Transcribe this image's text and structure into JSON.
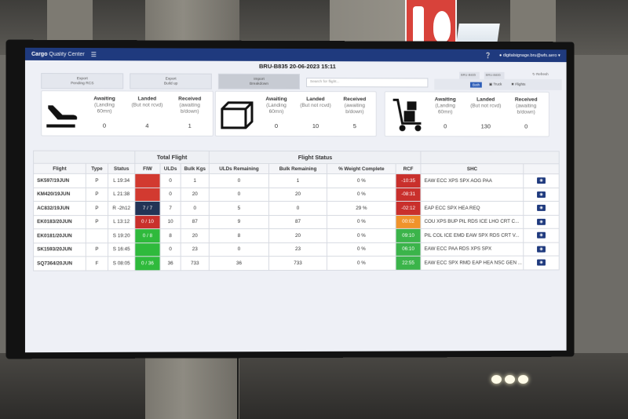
{
  "app": {
    "brand_bold": "Cargo",
    "brand_rest": " Quality Center",
    "user_email": "digitalsignage.bru@wfs.aero",
    "page_title": "BRU-B835 20-06-2023 15:11"
  },
  "controls": {
    "export_pending_line1": "Export",
    "export_pending_line2": "Pending RCS",
    "export_buildup_line1": "Export",
    "export_buildup_line2": "Build up",
    "import_breakdown_line1": "Import",
    "import_breakdown_line2": "Breakdown",
    "search_placeholder": "Search for flight...",
    "select_a": "BRU-B835",
    "select_b": "BRU-B835",
    "refresh_label": "Refresh",
    "filter_both": "Both",
    "filter_truck": "Truck",
    "filter_flights": "Flights"
  },
  "summary": {
    "flight": {
      "icon": "plane-landing-icon",
      "awaiting_label": "Awaiting",
      "awaiting_sub": "(Landing 60mn)",
      "awaiting_value": "0",
      "landed_label": "Landed",
      "landed_sub": "(But not rcvd)",
      "landed_value": "4",
      "received_label": "Received",
      "received_sub": "(awaiting b/down)",
      "received_value": "1"
    },
    "uld": {
      "icon": "uld-container-icon",
      "awaiting_label": "Awaiting",
      "awaiting_sub": "(Landing 60mn)",
      "awaiting_value": "0",
      "landed_label": "Landed",
      "landed_sub": "(But not rcvd)",
      "landed_value": "10",
      "received_label": "Received",
      "received_sub": "(awaiting b/down)",
      "received_value": "5"
    },
    "bulk": {
      "icon": "hand-truck-icon",
      "awaiting_label": "Awaiting",
      "awaiting_sub": "(Landing 60mn)",
      "awaiting_value": "0",
      "landed_label": "Landed",
      "landed_sub": "(But not rcvd)",
      "landed_value": "130",
      "received_label": "Received",
      "received_sub": "(awaiting b/down)",
      "received_value": "0"
    }
  },
  "table": {
    "group_total": "Total Flight",
    "group_status": "Flight Status",
    "headers": {
      "flight": "Flight",
      "type": "Type",
      "status": "Status",
      "fiw": "FIW",
      "ulds": "ULDs",
      "bulk_kgs": "Bulk Kgs",
      "ulds_remaining": "ULDs Remaining",
      "bulk_remaining": "Bulk Remaining",
      "pct_weight": "% Weight Complete",
      "rcf": "RCF",
      "shc": "SHC"
    },
    "rows": [
      {
        "flight": "SK597/19JUN",
        "type": "P",
        "status": "L 19:34",
        "fiw": "",
        "fiw_color": "#d23a30",
        "ulds": "0",
        "bulk": "1",
        "ulds_rem": "0",
        "bulk_rem": "1",
        "pct": "0 %",
        "rcf": "-10:35",
        "rcf_color": "#c9302c",
        "shc": "EAW ECC XPS SPX AOG PAA"
      },
      {
        "flight": "KM420/19JUN",
        "type": "P",
        "status": "L 21:38",
        "fiw": "",
        "fiw_color": "#d23a30",
        "ulds": "0",
        "bulk": "20",
        "ulds_rem": "0",
        "bulk_rem": "20",
        "pct": "0 %",
        "rcf": "-08:31",
        "rcf_color": "#c9302c",
        "shc": ""
      },
      {
        "flight": "AC832/19JUN",
        "type": "P",
        "status": "R -2h12",
        "fiw": "7 / 7",
        "fiw_color": "#233456",
        "ulds": "7",
        "bulk": "0",
        "ulds_rem": "5",
        "bulk_rem": "0",
        "pct": "29 %",
        "rcf": "-02:12",
        "rcf_color": "#c9302c",
        "shc": "EAP ECC SPX HEA REQ"
      },
      {
        "flight": "EK0183/20JUN",
        "type": "P",
        "status": "L 13:12",
        "fiw": "0 / 10",
        "fiw_color": "#c9302c",
        "ulds": "10",
        "bulk": "87",
        "ulds_rem": "9",
        "bulk_rem": "87",
        "pct": "0 %",
        "rcf": "00:02",
        "rcf_color": "#f0932b",
        "shc": "COU XPS BUP PIL RDS ICE LHO CRT C..."
      },
      {
        "flight": "EK0181/20JUN",
        "type": "",
        "status": "S 19:20",
        "fiw": "0 / 8",
        "fiw_color": "#2fba3c",
        "ulds": "8",
        "bulk": "20",
        "ulds_rem": "8",
        "bulk_rem": "20",
        "pct": "0 %",
        "rcf": "09:10",
        "rcf_color": "#3bb44a",
        "shc": "PIL COL ICE EMD EAW SPX RDS CRT V..."
      },
      {
        "flight": "SK1593/20JUN",
        "type": "P",
        "status": "S 16:45",
        "fiw": "",
        "fiw_color": "#2fba3c",
        "ulds": "0",
        "bulk": "23",
        "ulds_rem": "0",
        "bulk_rem": "23",
        "pct": "0 %",
        "rcf": "06:10",
        "rcf_color": "#3bb44a",
        "shc": "EAW ECC PAA RDS XPS SPX"
      },
      {
        "flight": "SQ7364/20JUN",
        "type": "F",
        "status": "S 08:05",
        "fiw": "0 / 36",
        "fiw_color": "#2fba3c",
        "ulds": "36",
        "bulk": "733",
        "ulds_rem": "36",
        "bulk_rem": "733",
        "pct": "0 %",
        "rcf": "22:55",
        "rcf_color": "#3bb44a",
        "shc": "EAW ECC SPX RMD EAP HEA NSC GEN ..."
      }
    ],
    "view_button_icon": "eye-icon"
  }
}
